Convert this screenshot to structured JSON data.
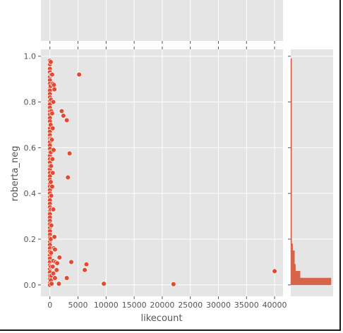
{
  "chart_data": {
    "type": "scatter",
    "title": "",
    "xlabel": "likecount",
    "ylabel": "roberta_neg",
    "xlim": [
      -1600,
      41500
    ],
    "ylim": [
      -0.05,
      1.03
    ],
    "grid": true,
    "xticks": [
      0,
      5000,
      10000,
      15000,
      20000,
      25000,
      30000,
      35000,
      40000
    ],
    "yticks": [
      0.0,
      0.2,
      0.4,
      0.6,
      0.8,
      1.0
    ],
    "colors": {
      "points": "#E24A33",
      "bars": "#D5644A",
      "panel": "#E5E5E5",
      "grid": "#FFFFFF"
    },
    "points": [
      [
        0,
        0.98
      ],
      [
        0,
        0.965
      ],
      [
        0,
        0.945
      ],
      [
        0,
        0.93
      ],
      [
        0,
        0.91
      ],
      [
        0,
        0.895
      ],
      [
        0,
        0.88
      ],
      [
        0,
        0.865
      ],
      [
        0,
        0.85
      ],
      [
        0,
        0.835
      ],
      [
        0,
        0.82
      ],
      [
        0,
        0.805
      ],
      [
        0,
        0.79
      ],
      [
        0,
        0.775
      ],
      [
        0,
        0.76
      ],
      [
        0,
        0.745
      ],
      [
        0,
        0.73
      ],
      [
        0,
        0.715
      ],
      [
        0,
        0.7
      ],
      [
        0,
        0.685
      ],
      [
        0,
        0.67
      ],
      [
        0,
        0.655
      ],
      [
        0,
        0.64
      ],
      [
        0,
        0.625
      ],
      [
        0,
        0.61
      ],
      [
        0,
        0.595
      ],
      [
        0,
        0.58
      ],
      [
        0,
        0.565
      ],
      [
        0,
        0.55
      ],
      [
        0,
        0.535
      ],
      [
        0,
        0.52
      ],
      [
        0,
        0.505
      ],
      [
        0,
        0.49
      ],
      [
        0,
        0.475
      ],
      [
        0,
        0.46
      ],
      [
        0,
        0.445
      ],
      [
        0,
        0.43
      ],
      [
        0,
        0.415
      ],
      [
        0,
        0.4
      ],
      [
        0,
        0.385
      ],
      [
        0,
        0.37
      ],
      [
        0,
        0.355
      ],
      [
        0,
        0.34
      ],
      [
        0,
        0.325
      ],
      [
        0,
        0.31
      ],
      [
        0,
        0.295
      ],
      [
        0,
        0.28
      ],
      [
        0,
        0.265
      ],
      [
        0,
        0.25
      ],
      [
        0,
        0.235
      ],
      [
        0,
        0.22
      ],
      [
        0,
        0.205
      ],
      [
        0,
        0.19
      ],
      [
        0,
        0.175
      ],
      [
        0,
        0.16
      ],
      [
        0,
        0.145
      ],
      [
        0,
        0.13
      ],
      [
        0,
        0.115
      ],
      [
        0,
        0.1
      ],
      [
        0,
        0.085
      ],
      [
        0,
        0.07
      ],
      [
        0,
        0.055
      ],
      [
        0,
        0.04
      ],
      [
        0,
        0.025
      ],
      [
        0,
        0.01
      ],
      [
        0,
        0.0
      ],
      [
        150,
        0.975
      ],
      [
        200,
        0.92
      ],
      [
        120,
        0.87
      ],
      [
        180,
        0.81
      ],
      [
        250,
        0.76
      ],
      [
        130,
        0.7
      ],
      [
        220,
        0.64
      ],
      [
        160,
        0.58
      ],
      [
        200,
        0.52
      ],
      [
        150,
        0.45
      ],
      [
        230,
        0.39
      ],
      [
        170,
        0.33
      ],
      [
        260,
        0.26
      ],
      [
        140,
        0.2
      ],
      [
        210,
        0.14
      ],
      [
        180,
        0.08
      ],
      [
        240,
        0.04
      ],
      [
        160,
        0.02
      ],
      [
        300,
        0.005
      ],
      [
        400,
        0.92
      ],
      [
        500,
        0.88
      ],
      [
        700,
        0.875
      ],
      [
        800,
        0.855
      ],
      [
        600,
        0.8
      ],
      [
        400,
        0.75
      ],
      [
        500,
        0.685
      ],
      [
        350,
        0.635
      ],
      [
        650,
        0.59
      ],
      [
        450,
        0.55
      ],
      [
        500,
        0.49
      ],
      [
        400,
        0.43
      ],
      [
        600,
        0.33
      ],
      [
        800,
        0.21
      ],
      [
        700,
        0.16
      ],
      [
        900,
        0.155
      ],
      [
        600,
        0.105
      ],
      [
        1000,
        0.1
      ],
      [
        500,
        0.08
      ],
      [
        1200,
        0.065
      ],
      [
        600,
        0.05
      ],
      [
        900,
        0.03
      ],
      [
        1700,
        0.12
      ],
      [
        1300,
        0.095
      ],
      [
        1600,
        0.005
      ],
      [
        2100,
        0.76
      ],
      [
        2400,
        0.74
      ],
      [
        3000,
        0.72
      ],
      [
        3200,
        0.47
      ],
      [
        3500,
        0.575
      ],
      [
        3800,
        0.1
      ],
      [
        3000,
        0.03
      ],
      [
        5200,
        0.92
      ],
      [
        6200,
        0.065
      ],
      [
        6500,
        0.09
      ],
      [
        9600,
        0.005
      ],
      [
        22000,
        0.003
      ],
      [
        40000,
        0.06
      ]
    ],
    "histogram": {
      "orientation": "horizontal",
      "bin_width": 0.03,
      "bins": [
        [
          0.0,
          43
        ],
        [
          0.03,
          10
        ],
        [
          0.06,
          5
        ],
        [
          0.09,
          4
        ],
        [
          0.12,
          4
        ],
        [
          0.15,
          2
        ],
        [
          0.18,
          1
        ],
        [
          0.21,
          1
        ],
        [
          0.24,
          1
        ],
        [
          0.27,
          1
        ],
        [
          0.3,
          1
        ],
        [
          0.33,
          1
        ],
        [
          0.36,
          1
        ],
        [
          0.39,
          1
        ],
        [
          0.42,
          1
        ],
        [
          0.45,
          1
        ],
        [
          0.48,
          1
        ],
        [
          0.51,
          1
        ],
        [
          0.54,
          1
        ],
        [
          0.57,
          1
        ],
        [
          0.6,
          1
        ],
        [
          0.63,
          1
        ],
        [
          0.66,
          1
        ],
        [
          0.69,
          1
        ],
        [
          0.72,
          1
        ],
        [
          0.75,
          1
        ],
        [
          0.78,
          1
        ],
        [
          0.81,
          1
        ],
        [
          0.84,
          1
        ],
        [
          0.87,
          1
        ],
        [
          0.9,
          1
        ],
        [
          0.93,
          1
        ],
        [
          0.96,
          1
        ]
      ]
    }
  }
}
